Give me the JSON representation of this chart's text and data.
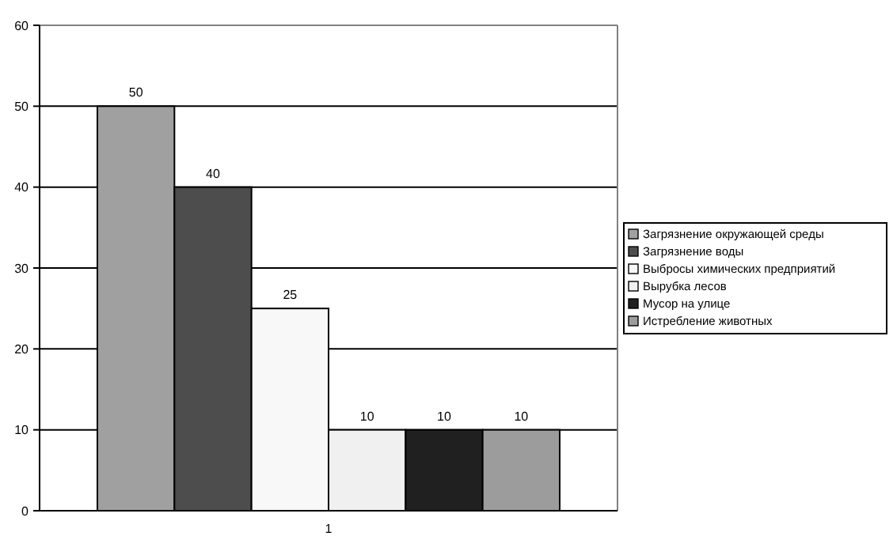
{
  "chart_data": {
    "type": "bar",
    "categories": [
      "1"
    ],
    "series": [
      {
        "name": "Загрязнение окружающей среды",
        "color": "#a0a0a0",
        "values": [
          50
        ]
      },
      {
        "name": "Загрязнение воды",
        "color": "#4d4d4d",
        "values": [
          40
        ]
      },
      {
        "name": "Выбросы химических предприятий",
        "color": "#f8f8f8",
        "values": [
          25
        ]
      },
      {
        "name": "Вырубка лесов",
        "color": "#f0f0f0",
        "values": [
          10
        ]
      },
      {
        "name": "Мусор на улице",
        "color": "#202020",
        "values": [
          10
        ]
      },
      {
        "name": "Истребление животных",
        "color": "#9c9c9c",
        "values": [
          10
        ]
      }
    ],
    "ylim": [
      0,
      60
    ],
    "yticks": [
      0,
      10,
      20,
      30,
      40,
      50,
      60
    ],
    "grid": "y",
    "data_labels": true,
    "legend": "right"
  }
}
